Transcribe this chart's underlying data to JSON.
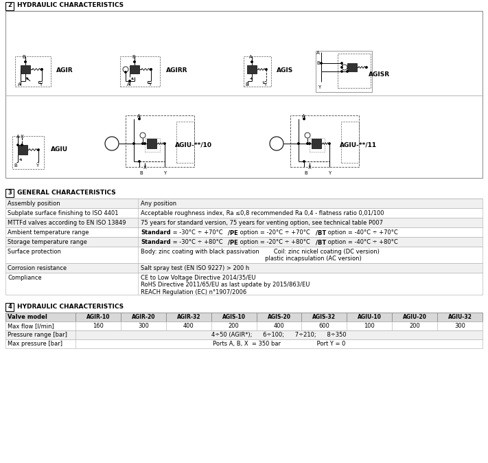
{
  "section2_title": "HYDRAULIC CHARACTERISTICS",
  "section2_num": "2",
  "section3_title": "GENERAL CHARACTERISTICS",
  "section3_num": "3",
  "section4_title": "HYDRAULIC CHARACTERISTICS",
  "section4_num": "4",
  "general_rows": [
    {
      "label": "Assembly position",
      "value": "Any position",
      "rh": 14
    },
    {
      "label": "Subplate surface finishing to ISO 4401",
      "value": "Acceptable roughness index, Ra ≤0,8 recommended Ra 0,4 - flatness ratio 0,01/100",
      "rh": 14
    },
    {
      "label": "MTTFd valves according to EN ISO 13849",
      "value": "75 years for standard version, 75 years for venting option, see technical table P007",
      "rh": 14
    },
    {
      "label": "Ambient temperature range",
      "value": "Standard = -30°C ÷ +70°C   /PE option = -20°C ÷ +70°C   /BT option = -40°C ÷ +70°C",
      "value_parts": [
        {
          "text": "Standard",
          "bold": true
        },
        {
          "text": " = -30°C ÷ +70°C   ",
          "bold": false
        },
        {
          "text": "/PE",
          "bold": true
        },
        {
          "text": " option = -20°C ÷ +70°C   ",
          "bold": false
        },
        {
          "text": "/BT",
          "bold": true
        },
        {
          "text": " option = -40°C ÷ +70°C",
          "bold": false
        }
      ],
      "rh": 14
    },
    {
      "label": "Storage temperature range",
      "value": "Standard = -30°C ÷ +80°C   /PE option = -20°C ÷ +80°C   /BT option = -40°C ÷ +80°C",
      "value_parts": [
        {
          "text": "Standard",
          "bold": true
        },
        {
          "text": " = -30°C ÷ +80°C   ",
          "bold": false
        },
        {
          "text": "/PE",
          "bold": true
        },
        {
          "text": " option = -20°C ÷ +80°C   ",
          "bold": false
        },
        {
          "text": "/BT",
          "bold": true
        },
        {
          "text": " option = -40°C ÷ +80°C",
          "bold": false
        }
      ],
      "rh": 14
    },
    {
      "label": "Surface protection",
      "value": "Body: zinc coating with black passivation        Coil: zinc nickel coating (DC version)\n                                                                     plastic incapsulation (AC version)",
      "rh": 24
    },
    {
      "label": "Corrosion resistance",
      "value": "Salt spray test (EN ISO 9227) > 200 h",
      "rh": 14
    },
    {
      "label": "Compliance",
      "value": "CE to Low Voltage Directive 2014/35/EU\nRoHS Directive 2011/65/EU as last update by 2015/863/EU\nREACH Regulation (EC) n°1907/2006",
      "rh": 32
    }
  ],
  "hydraulic_headers": [
    "Valve model",
    "AGIR-10",
    "AGIR-20",
    "AGIR-32",
    "AGIS-10",
    "AGIS-20",
    "AGIS-32",
    "AGIU-10",
    "AGIU-20",
    "AGIU-32"
  ],
  "hydraulic_row1_label": "Max flow [l/min]",
  "hydraulic_row1_values": [
    "160",
    "300",
    "400",
    "200",
    "400",
    "600",
    "100",
    "200",
    "300"
  ],
  "hydraulic_row2_label": "Pressure range [bar]",
  "hydraulic_row2_value": "4÷50 (AGIR*);      6÷100;      7÷210;      8÷350",
  "hydraulic_row3_label": "Max pressure [bar]",
  "hydraulic_row3_value": "Ports A, B, X  = 350 bar                    Port Y = 0"
}
